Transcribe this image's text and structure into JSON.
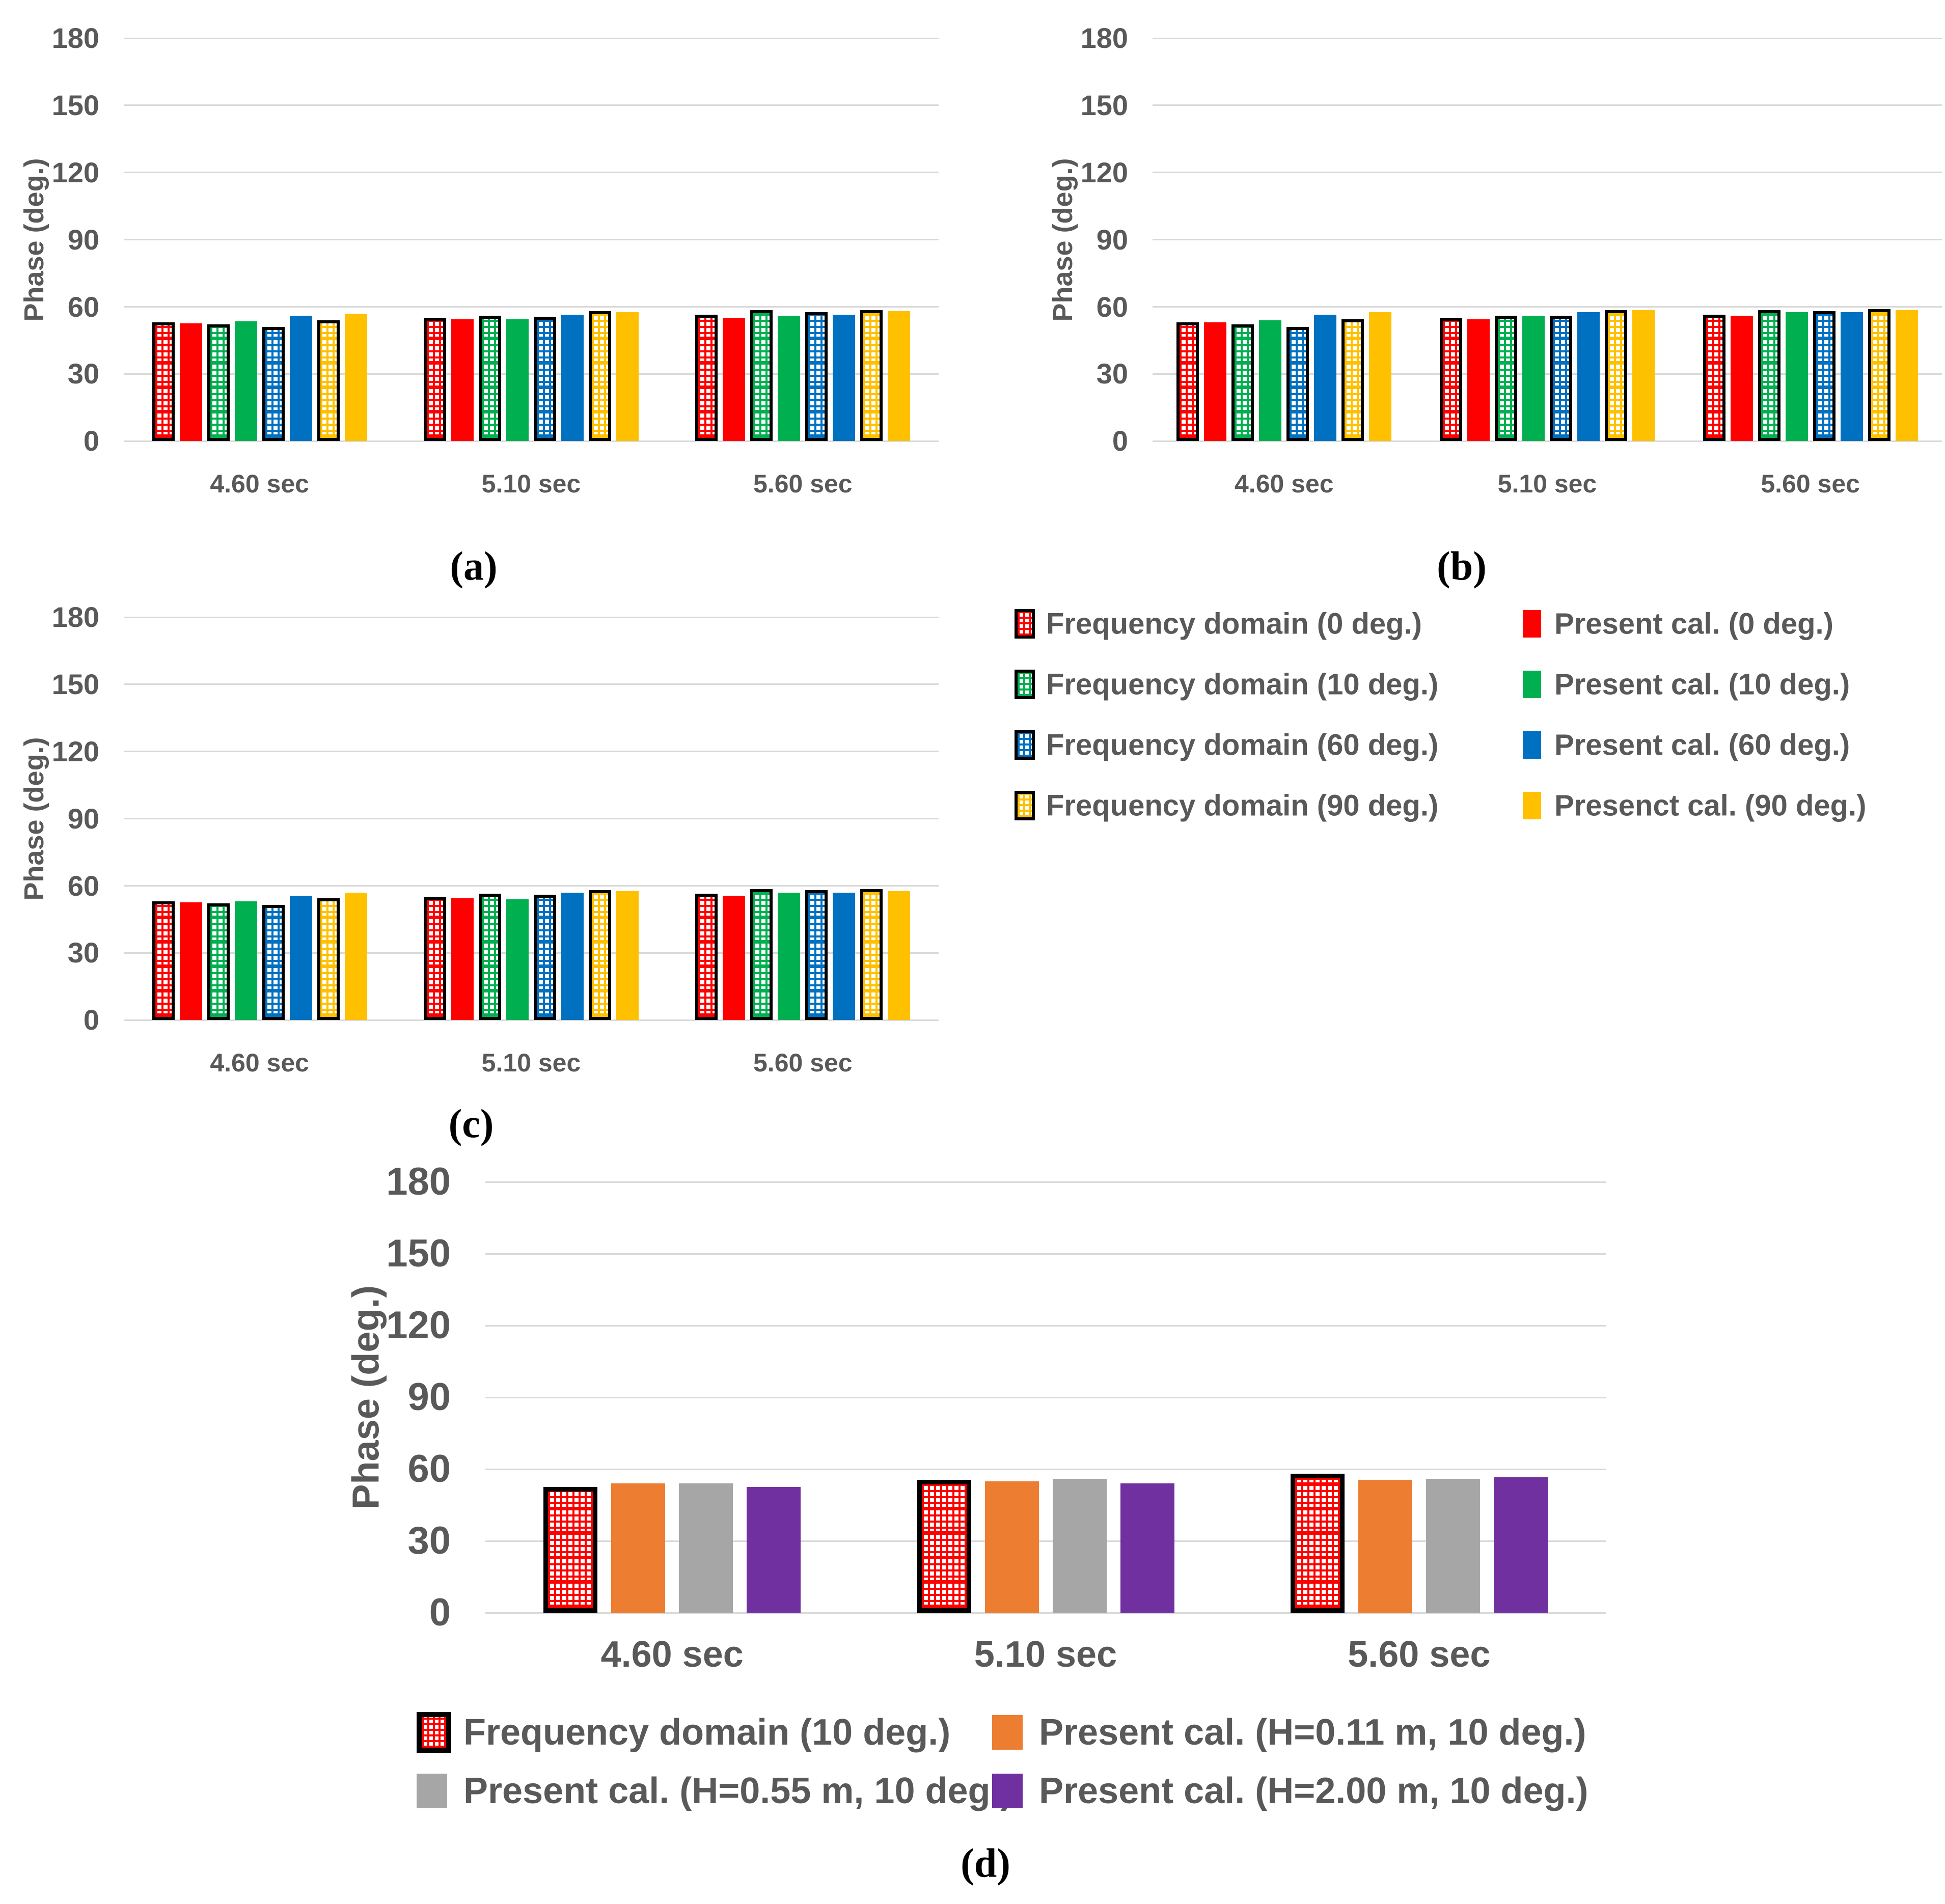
{
  "figure": {
    "background": "#FFFFFF"
  },
  "panel_labels": {
    "a": "(a)",
    "b": "(b)",
    "c": "(c)",
    "d": "(d)"
  },
  "axis": {
    "ylabel": "Phase (deg.)",
    "yticks": [
      0,
      30,
      60,
      90,
      120,
      150,
      180
    ],
    "ylim": [
      0,
      180
    ],
    "categories": [
      "4.60 sec",
      "5.10 sec",
      "5.60 sec"
    ]
  },
  "colors": {
    "red": "#FF0000",
    "green": "#00B050",
    "blue": "#0070C0",
    "yellow": "#FFC000",
    "orange": "#ED7D31",
    "gray": "#A6A6A6",
    "purple": "#7030A0",
    "text": "#595959",
    "gridline": "#D9D9D9",
    "hatch_border": "#000000"
  },
  "legend_abc": {
    "items": [
      {
        "label": "Frequency domain (0 deg.)",
        "color": "#FF0000",
        "hatched": true
      },
      {
        "label": "Present cal. (0 deg.)",
        "color": "#FF0000",
        "hatched": false
      },
      {
        "label": "Frequency domain (10 deg.)",
        "color": "#00B050",
        "hatched": true
      },
      {
        "label": "Present cal. (10 deg.)",
        "color": "#00B050",
        "hatched": false
      },
      {
        "label": "Frequency domain (60 deg.)",
        "color": "#0070C0",
        "hatched": true
      },
      {
        "label": "Present cal. (60 deg.)",
        "color": "#0070C0",
        "hatched": false
      },
      {
        "label": "Frequency domain (90 deg.)",
        "color": "#FFC000",
        "hatched": true
      },
      {
        "label": "Presenct cal. (90 deg.)",
        "color": "#FFC000",
        "hatched": false
      }
    ]
  },
  "legend_d": {
    "items": [
      {
        "label": "Frequency domain (10 deg.)",
        "color": "#FF0000",
        "hatched": true
      },
      {
        "label": "Present cal. (H=0.11 m, 10 deg.)",
        "color": "#ED7D31",
        "hatched": false
      },
      {
        "label": "Present cal. (H=0.55 m, 10 deg.)",
        "color": "#A6A6A6",
        "hatched": false
      },
      {
        "label": "Present cal. (H=2.00 m, 10 deg.)",
        "color": "#7030A0",
        "hatched": false
      }
    ]
  },
  "chart_data": [
    {
      "id": "a",
      "type": "bar",
      "panel_label": "(a)",
      "ylabel": "Phase (deg.)",
      "ylim": [
        0,
        180
      ],
      "ytick_step": 30,
      "grid": true,
      "categories": [
        "4.60 sec",
        "5.10 sec",
        "5.60 sec"
      ],
      "series": [
        {
          "name": "Frequency domain (0 deg.)",
          "color": "#FF0000",
          "hatched": true,
          "values": [
            53.0,
            55.0,
            56.5
          ]
        },
        {
          "name": "Present cal. (0 deg.)",
          "color": "#FF0000",
          "hatched": false,
          "values": [
            52.5,
            54.5,
            55.0
          ]
        },
        {
          "name": "Frequency domain (10 deg.)",
          "color": "#00B050",
          "hatched": true,
          "values": [
            52.0,
            56.0,
            58.5
          ]
        },
        {
          "name": "Present cal. (10 deg.)",
          "color": "#00B050",
          "hatched": false,
          "values": [
            53.5,
            54.5,
            56.0
          ]
        },
        {
          "name": "Frequency domain (60 deg.)",
          "color": "#0070C0",
          "hatched": true,
          "values": [
            51.0,
            55.5,
            57.5
          ]
        },
        {
          "name": "Present cal. (60 deg.)",
          "color": "#0070C0",
          "hatched": false,
          "values": [
            56.0,
            56.5,
            56.5
          ]
        },
        {
          "name": "Frequency domain (90 deg.)",
          "color": "#FFC000",
          "hatched": true,
          "values": [
            54.0,
            58.0,
            58.5
          ]
        },
        {
          "name": "Presenct cal. (90 deg.)",
          "color": "#FFC000",
          "hatched": false,
          "values": [
            57.0,
            57.5,
            58.0
          ]
        }
      ]
    },
    {
      "id": "b",
      "type": "bar",
      "panel_label": "(b)",
      "ylabel": "Phase (deg.)",
      "ylim": [
        0,
        180
      ],
      "ytick_step": 30,
      "grid": true,
      "categories": [
        "4.60 sec",
        "5.10 sec",
        "5.60 sec"
      ],
      "series": [
        {
          "name": "Frequency domain (0 deg.)",
          "color": "#FF0000",
          "hatched": true,
          "values": [
            53.0,
            55.0,
            56.5
          ]
        },
        {
          "name": "Present cal. (0 deg.)",
          "color": "#FF0000",
          "hatched": false,
          "values": [
            53.0,
            54.5,
            56.0
          ]
        },
        {
          "name": "Frequency domain (10 deg.)",
          "color": "#00B050",
          "hatched": true,
          "values": [
            52.0,
            56.0,
            58.5
          ]
        },
        {
          "name": "Present cal. (10 deg.)",
          "color": "#00B050",
          "hatched": false,
          "values": [
            54.0,
            56.0,
            57.5
          ]
        },
        {
          "name": "Frequency domain (60 deg.)",
          "color": "#0070C0",
          "hatched": true,
          "values": [
            51.0,
            56.0,
            58.0
          ]
        },
        {
          "name": "Present cal. (60 deg.)",
          "color": "#0070C0",
          "hatched": false,
          "values": [
            56.5,
            57.5,
            57.5
          ]
        },
        {
          "name": "Frequency domain (90 deg.)",
          "color": "#FFC000",
          "hatched": true,
          "values": [
            54.5,
            58.5,
            59.0
          ]
        },
        {
          "name": "Presenct cal. (90 deg.)",
          "color": "#FFC000",
          "hatched": false,
          "values": [
            57.5,
            58.5,
            58.5
          ]
        }
      ]
    },
    {
      "id": "c",
      "type": "bar",
      "panel_label": "(c)",
      "ylabel": "Phase (deg.)",
      "ylim": [
        0,
        180
      ],
      "ytick_step": 30,
      "grid": true,
      "categories": [
        "4.60 sec",
        "5.10 sec",
        "5.60 sec"
      ],
      "series": [
        {
          "name": "Frequency domain (0 deg.)",
          "color": "#FF0000",
          "hatched": true,
          "values": [
            53.0,
            55.0,
            56.5
          ]
        },
        {
          "name": "Present cal. (0 deg.)",
          "color": "#FF0000",
          "hatched": false,
          "values": [
            52.5,
            54.5,
            55.5
          ]
        },
        {
          "name": "Frequency domain (10 deg.)",
          "color": "#00B050",
          "hatched": true,
          "values": [
            52.0,
            56.5,
            58.5
          ]
        },
        {
          "name": "Present cal. (10 deg.)",
          "color": "#00B050",
          "hatched": false,
          "values": [
            53.0,
            54.0,
            57.0
          ]
        },
        {
          "name": "Frequency domain (60 deg.)",
          "color": "#0070C0",
          "hatched": true,
          "values": [
            51.5,
            56.0,
            58.0
          ]
        },
        {
          "name": "Present cal. (60 deg.)",
          "color": "#0070C0",
          "hatched": false,
          "values": [
            55.5,
            57.0,
            57.0
          ]
        },
        {
          "name": "Frequency domain (90 deg.)",
          "color": "#FFC000",
          "hatched": true,
          "values": [
            54.5,
            58.0,
            58.5
          ]
        },
        {
          "name": "Presenct cal. (90 deg.)",
          "color": "#FFC000",
          "hatched": false,
          "values": [
            57.0,
            57.5,
            57.5
          ]
        }
      ]
    },
    {
      "id": "d",
      "type": "bar",
      "panel_label": "(d)",
      "ylabel": "Phase (deg.)",
      "ylim": [
        0,
        180
      ],
      "ytick_step": 30,
      "grid": true,
      "categories": [
        "4.60 sec",
        "5.10 sec",
        "5.60 sec"
      ],
      "series": [
        {
          "name": "Frequency domain (10 deg.)",
          "color": "#FF0000",
          "hatched": true,
          "values": [
            52.5,
            55.5,
            58.0
          ]
        },
        {
          "name": "Present cal. (H=0.11 m, 10 deg.)",
          "color": "#ED7D31",
          "hatched": false,
          "values": [
            54.0,
            55.0,
            55.5
          ]
        },
        {
          "name": "Present cal. (H=0.55 m, 10 deg.)",
          "color": "#A6A6A6",
          "hatched": false,
          "values": [
            54.0,
            56.0,
            56.0
          ]
        },
        {
          "name": "Present cal. (H=2.00 m, 10 deg.)",
          "color": "#7030A0",
          "hatched": false,
          "values": [
            52.5,
            54.0,
            56.5
          ]
        }
      ]
    }
  ]
}
